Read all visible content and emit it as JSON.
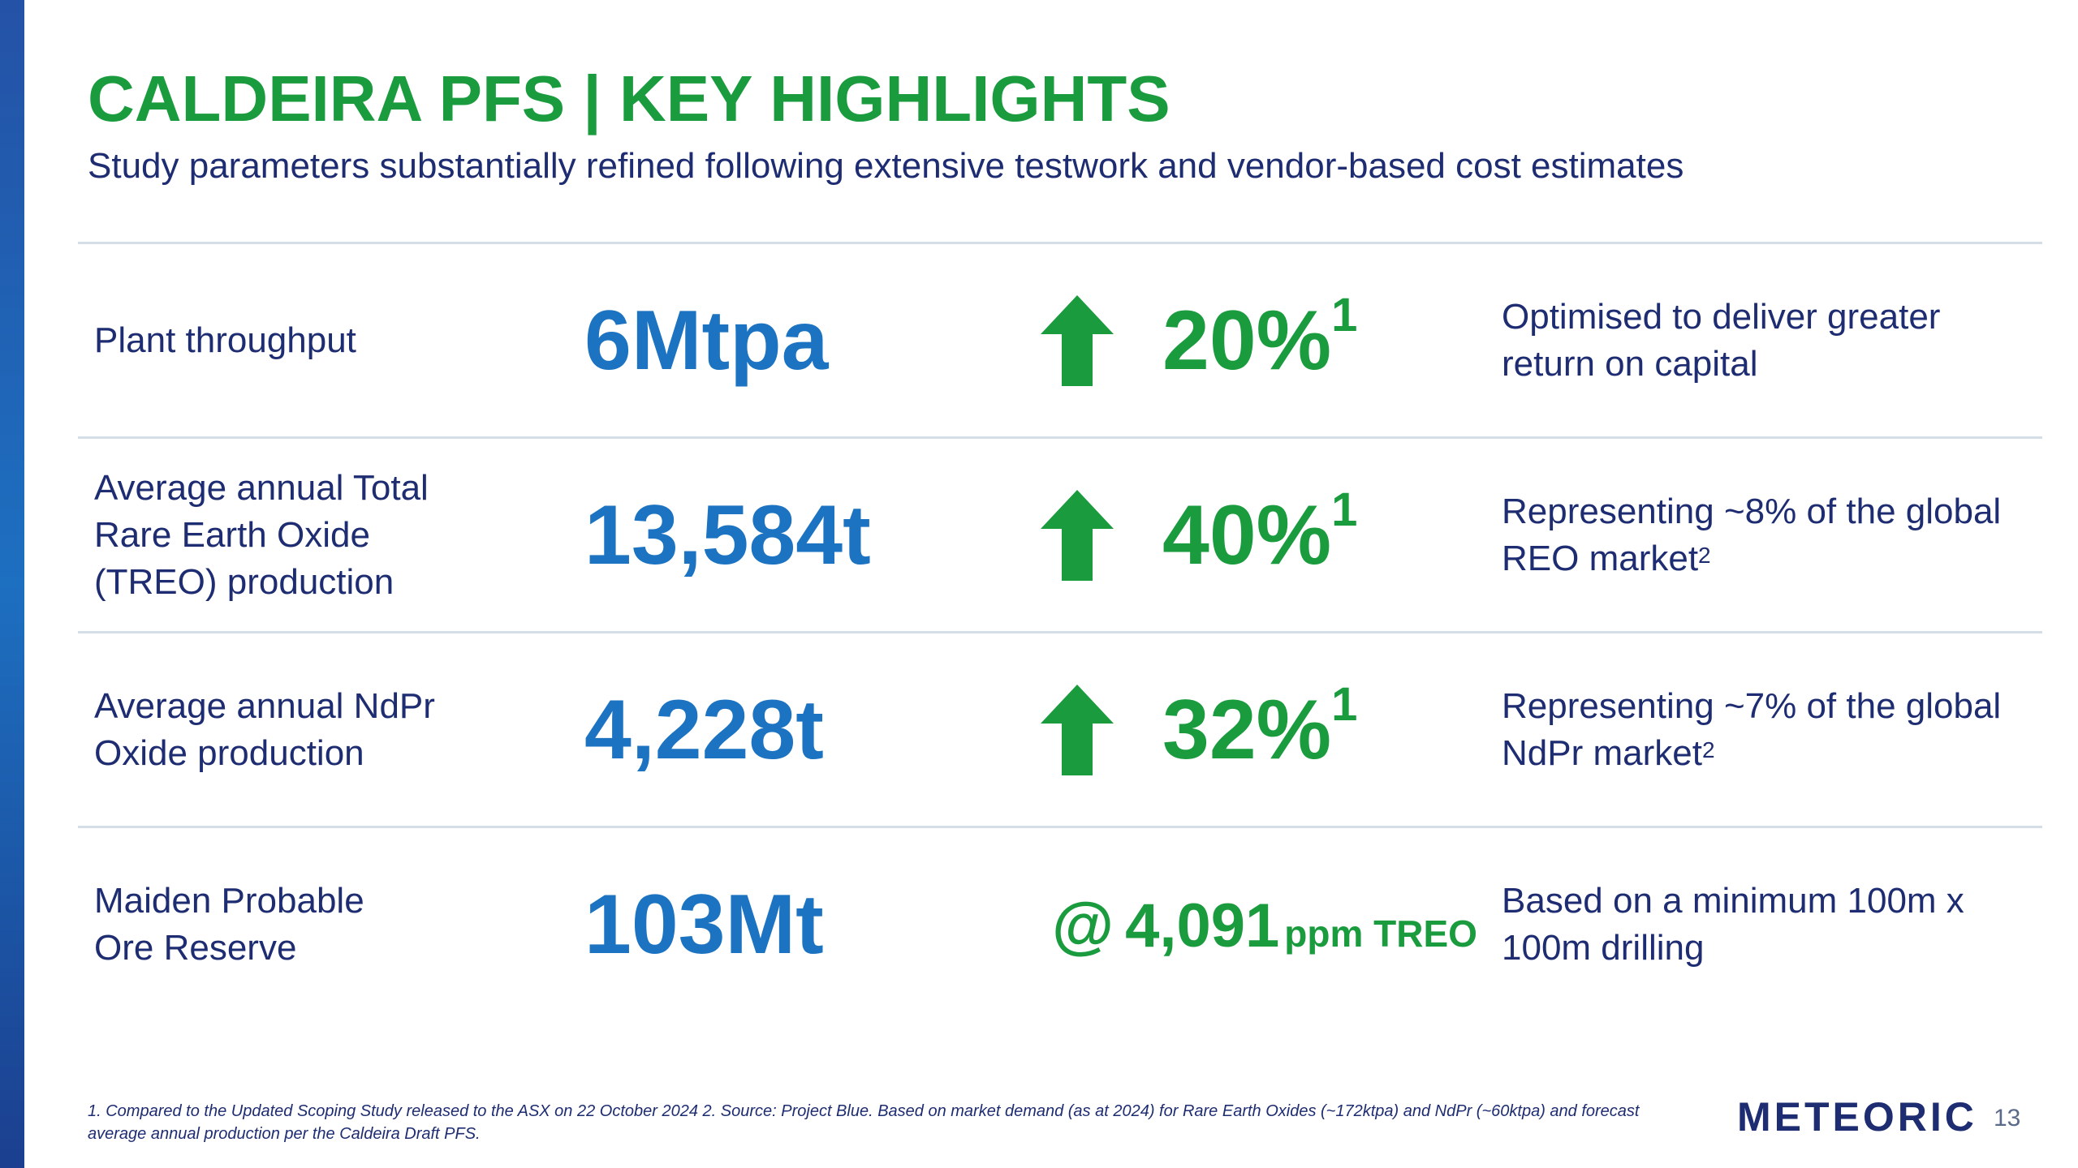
{
  "header": {
    "title": "CALDEIRA PFS | KEY HIGHLIGHTS",
    "subtitle": "Study parameters substantially refined following extensive testwork and vendor-based cost estimates"
  },
  "colors": {
    "green": "#1a9b3e",
    "blue": "#1c73c1",
    "navy": "#1e2d72"
  },
  "rows": [
    {
      "label": "Plant throughput",
      "value": "6Mtpa",
      "change_icon": "up-arrow-icon",
      "change": "20%",
      "change_ref": "1",
      "note": "Optimised to deliver greater return on capital"
    },
    {
      "label": "Average annual Total\nRare Earth Oxide\n(TREO) production",
      "value": "13,584t",
      "change_icon": "up-arrow-icon",
      "change": "40%",
      "change_ref": "1",
      "note": "Representing ~8% of the global REO market",
      "note_ref": "2"
    },
    {
      "label": "Average annual NdPr\nOxide production",
      "value": "4,228t",
      "change_icon": "up-arrow-icon",
      "change": "32%",
      "change_ref": "1",
      "note": "Representing ~7% of the global NdPr market",
      "note_ref": "2"
    },
    {
      "label": "Maiden Probable\nOre Reserve",
      "value": "103Mt",
      "at_symbol": "@",
      "grade": "4,091",
      "grade_unit": "ppm TREO",
      "note": "Based on a minimum 100m x 100m drilling"
    }
  ],
  "footer": {
    "footnote": "1. Compared to the Updated Scoping Study released to the ASX on 22 October 2024 2. Source: Project Blue. Based on market demand (as at 2024) for Rare Earth Oxides (~172ktpa) and NdPr (~60ktpa) and forecast average annual production per the Caldeira Draft PFS.",
    "logo": "METEORIC",
    "page_number": "13"
  }
}
